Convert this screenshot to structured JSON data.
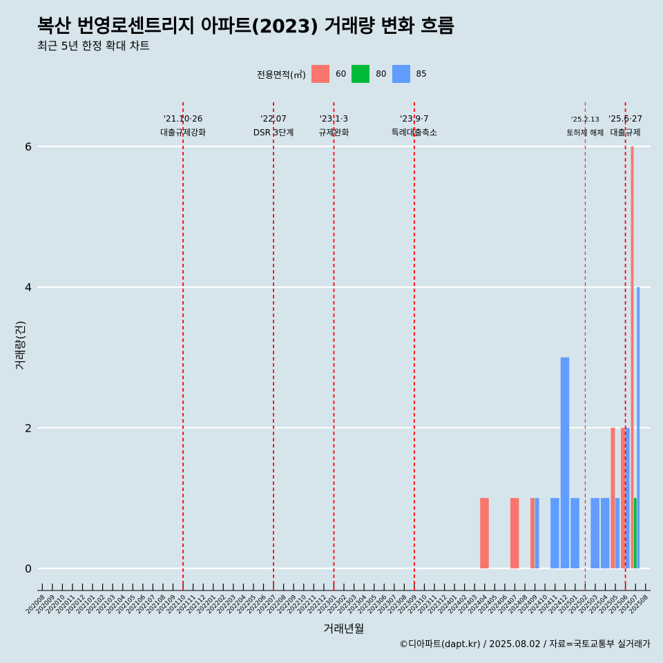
{
  "header": {
    "title": "복산 번영로센트리지 아파트(2023) 거래량 변화 흐름",
    "subtitle": "최근 5년 한정 확대 차트"
  },
  "legend": {
    "title": "전용면적(㎡)",
    "items": [
      {
        "label": "60",
        "color": "#F8766D"
      },
      {
        "label": "80",
        "color": "#00BA38"
      },
      {
        "label": "85",
        "color": "#619CFF"
      }
    ]
  },
  "caption": "©디아파트(dapt.kr) / 2025.08.02 / 자료=국토교통부 실거래가",
  "chart_data": {
    "type": "bar",
    "title": "복산 번영로센트리지 아파트(2023) 거래량 변화 흐름",
    "subtitle": "최근 5년 한정 확대 차트",
    "xlabel": "거래년월",
    "ylabel": "거래량(건)",
    "ylim": [
      0,
      6
    ],
    "y_ticks": [
      0,
      2,
      4,
      6
    ],
    "grid": "horizontal",
    "legend_position": "top",
    "categories": [
      "202008",
      "202009",
      "202010",
      "202011",
      "202012",
      "202101",
      "202102",
      "202103",
      "202104",
      "202105",
      "202106",
      "202107",
      "202108",
      "202109",
      "202110",
      "202111",
      "202112",
      "202201",
      "202202",
      "202203",
      "202204",
      "202205",
      "202206",
      "202207",
      "202208",
      "202209",
      "202210",
      "202211",
      "202212",
      "202301",
      "202302",
      "202303",
      "202304",
      "202305",
      "202306",
      "202307",
      "202308",
      "202309",
      "202310",
      "202311",
      "202312",
      "202401",
      "202402",
      "202403",
      "202404",
      "202405",
      "202406",
      "202407",
      "202408",
      "202409",
      "202410",
      "202411",
      "202412",
      "202501",
      "202502",
      "202503",
      "202504",
      "202505",
      "202506",
      "202507",
      "202508"
    ],
    "series": [
      {
        "name": "60",
        "color": "#F8766D",
        "values": [
          0,
          0,
          0,
          0,
          0,
          0,
          0,
          0,
          0,
          0,
          0,
          0,
          0,
          0,
          0,
          0,
          0,
          0,
          0,
          0,
          0,
          0,
          0,
          0,
          0,
          0,
          0,
          0,
          0,
          0,
          0,
          0,
          0,
          0,
          0,
          0,
          0,
          0,
          0,
          0,
          0,
          0,
          0,
          0,
          1,
          0,
          0,
          1,
          0,
          1,
          0,
          0,
          0,
          0,
          0,
          0,
          0,
          2,
          2,
          6,
          0
        ]
      },
      {
        "name": "80",
        "color": "#00BA38",
        "values": [
          0,
          0,
          0,
          0,
          0,
          0,
          0,
          0,
          0,
          0,
          0,
          0,
          0,
          0,
          0,
          0,
          0,
          0,
          0,
          0,
          0,
          0,
          0,
          0,
          0,
          0,
          0,
          0,
          0,
          0,
          0,
          0,
          0,
          0,
          0,
          0,
          0,
          0,
          0,
          0,
          0,
          0,
          0,
          0,
          0,
          0,
          0,
          0,
          0,
          0,
          0,
          0,
          0,
          0,
          0,
          0,
          0,
          0,
          0,
          1,
          0
        ]
      },
      {
        "name": "85",
        "color": "#619CFF",
        "values": [
          0,
          0,
          0,
          0,
          0,
          0,
          0,
          0,
          0,
          0,
          0,
          0,
          0,
          0,
          0,
          0,
          0,
          0,
          0,
          0,
          0,
          0,
          0,
          0,
          0,
          0,
          0,
          0,
          0,
          0,
          0,
          0,
          0,
          0,
          0,
          0,
          0,
          0,
          0,
          0,
          0,
          0,
          0,
          0,
          0,
          0,
          0,
          0,
          0,
          1,
          0,
          1,
          3,
          1,
          0,
          1,
          1,
          1,
          2,
          4,
          0
        ]
      }
    ],
    "annotations": [
      {
        "x": "202110",
        "date": "'21.10·26",
        "label": "대출규제강화",
        "size": "normal"
      },
      {
        "x": "202207",
        "date": "'22.07",
        "label": "DSR 3단계",
        "size": "normal"
      },
      {
        "x": "202301",
        "date": "'23.1·3",
        "label": "규제완화",
        "size": "normal"
      },
      {
        "x": "202309",
        "date": "'23.9·7",
        "label": "특례대출축소",
        "size": "normal"
      },
      {
        "x": "202502",
        "date": "'25.2.13",
        "label": "토허제 해제",
        "size": "small"
      },
      {
        "x": "202506",
        "date": "'25.6·27",
        "label": "대출규제",
        "size": "normal"
      }
    ]
  }
}
